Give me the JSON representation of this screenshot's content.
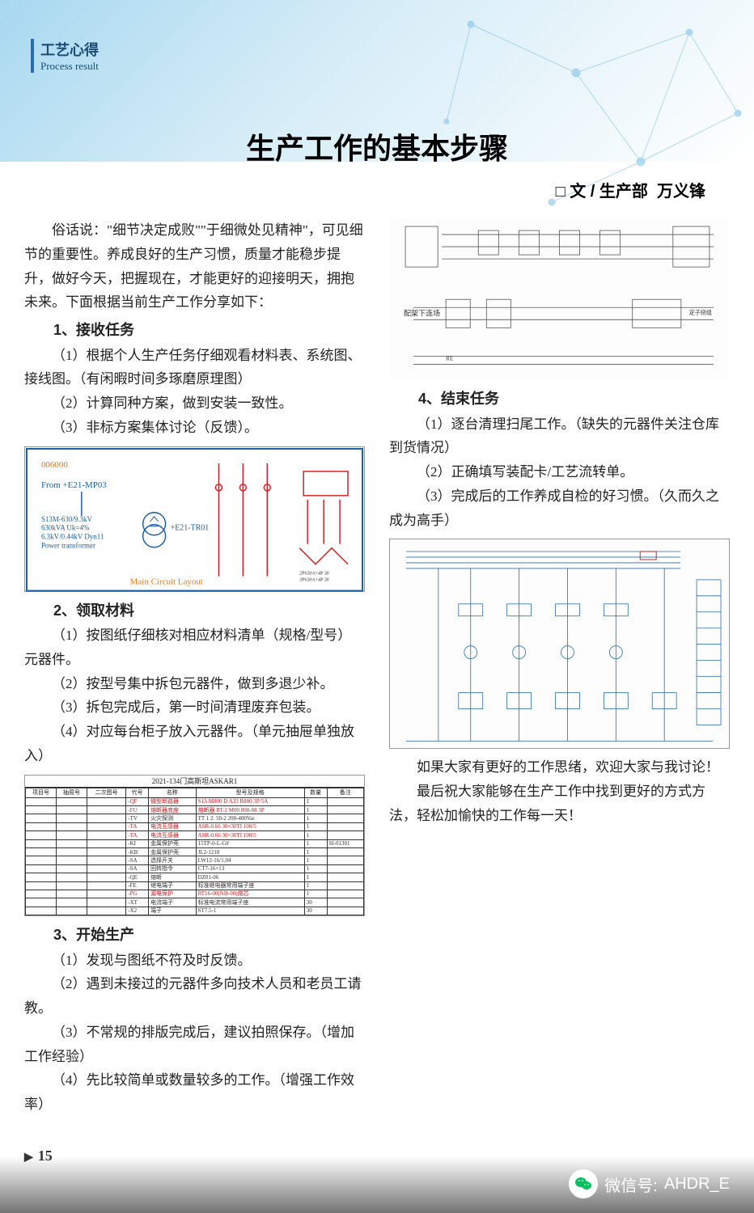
{
  "header": {
    "category_cn": "工艺心得",
    "category_en": "Process result"
  },
  "title": "生产工作的基本步骤",
  "byline_prefix": "□ 文 /",
  "byline_dept": "生产部",
  "byline_author": "万义锋",
  "intro": "俗话说：\"细节决定成败\"\"于细微处见精神\"，可见细节的重要性。养成良好的生产习惯，质量才能稳步提升，做好今天，把握现在，才能更好的迎接明天，拥抱未来。下面根据当前生产工作分享如下：",
  "sections": [
    {
      "heading": "1、接收任务",
      "items": [
        "（1）根据个人生产任务仔细观看材料表、系统图、接线图。（有闲暇时间多琢磨原理图）",
        "（2）计算同种方案，做到安装一致性。",
        "（3）非标方案集体讨论（反馈）。"
      ]
    },
    {
      "heading": "2、领取材料",
      "items": [
        "（1）按图纸仔细核对相应材料清单（规格/型号）元器件。",
        "（2）按型号集中拆包元器件，做到多退少补。",
        "（3）拆包完成后，第一时间清理废弃包装。",
        "（4）对应每台柜子放入元器件。（单元抽屉单独放入）"
      ]
    },
    {
      "heading": "3、开始生产",
      "items": [
        "（1）发现与图纸不符及时反馈。",
        "（2）遇到未接过的元器件多向技术人员和老员工请教。",
        "（3）不常规的排版完成后，建议拍照保存。（增加工作经验）",
        "（4）先比较简单或数量较多的工作。（增强工作效率）"
      ]
    },
    {
      "heading": "4、结束任务",
      "items": [
        "（1）逐台清理扫尾工作。（缺失的元器件关注仓库到货情况）",
        "（2）正确填写装配卡/工艺流转单。",
        "（3）完成后的工作养成自检的好习惯。（久而久之成为高手）"
      ]
    }
  ],
  "closing": [
    "如果大家有更好的工作思绪，欢迎大家与我讨论！",
    "最后祝大家能够在生产工作中找到更好的方式方法，轻松加愉快的工作每一天！"
  ],
  "diagram1": {
    "label_from": "From +E21-MP03",
    "label_tx1": "S13M-630/9.3kV",
    "label_tx2": "630kVA Uk=4%",
    "label_tx3": "6.3kV/0.44kV Dyn11",
    "label_tx4": "Power transformer",
    "label_tr": "+E21-TR01",
    "label_footer": "Main Circuit Layout",
    "colors": {
      "frame": "#1b5fa6",
      "line": "#d02626",
      "text": "#1b5fa6",
      "orange": "#e67817"
    }
  },
  "table": {
    "title": "2021-134门高斯坦ASKAR1",
    "headers": [
      "项目号",
      "抽屉号",
      "二次图号",
      "代号",
      "名称",
      "型号及规格",
      "数量",
      "备注"
    ],
    "header_en": [
      "PROJECT",
      "",
      "",
      "",
      "Name",
      "Type & specification",
      "",
      "Remarks"
    ],
    "rows": [
      [
        "",
        "",
        "",
        "-QF",
        "微型断路器",
        "S13-M800 D A33 R800 3P/5A",
        "1",
        ""
      ],
      [
        "",
        "",
        "",
        "-FU",
        "熔断器底座",
        "熔断器 RT-2 M00.098-08 3P",
        "1",
        ""
      ],
      [
        "",
        "",
        "",
        "-TV",
        "火灾探测",
        "TT 1 2. 50-2 200-400Vac",
        "1",
        ""
      ],
      [
        "",
        "",
        "",
        "-TA",
        "电流互感器",
        "ASR-0.66 30×30TI 100/5",
        "1",
        ""
      ],
      [
        "",
        "",
        "",
        "-TA",
        "电流互感器",
        "ASR-0.66 30×30TI 100/5",
        "1",
        ""
      ],
      [
        "",
        "",
        "",
        "-KI",
        "金属保护壳",
        "15TP-0-L-G#",
        "1",
        "SI-01301"
      ],
      [
        "",
        "",
        "",
        "-KB",
        "金属保护壳",
        "JL2-1218",
        "1",
        ""
      ],
      [
        "",
        "",
        "",
        "-SA",
        "选择开关",
        "LW12-16/1.04",
        "1",
        ""
      ],
      [
        "",
        "",
        "",
        "-SA",
        "回转指令",
        "CT7-16×13",
        "1",
        ""
      ],
      [
        "",
        "",
        "",
        "-QE",
        "熔断",
        "DZ01-06",
        "1",
        ""
      ],
      [
        "",
        "",
        "",
        "-FE",
        "继电端子",
        "标准继电器常用端子座",
        "1",
        ""
      ],
      [
        "",
        "",
        "",
        "-PG",
        "漏电保护",
        "RT16-00(NH-00)熔芯",
        "1",
        ""
      ],
      [
        "",
        "",
        "",
        "-XT",
        "电流端子",
        "标准电流常用端子座",
        "30",
        ""
      ],
      [
        "",
        "",
        "",
        "-X2",
        "端子",
        "ST7.5-1",
        "30",
        ""
      ]
    ],
    "colors": {
      "border": "#333",
      "red_text": "#c41e1e",
      "header_bg": "#ffffff"
    }
  },
  "diagram2": {
    "label": "配架下连场",
    "colors": {
      "line": "#333"
    }
  },
  "diagram3": {
    "colors": {
      "line": "#2a6da8",
      "accent": "#d02626"
    }
  },
  "page_number": "15",
  "footer": {
    "wechat_label": "微信号:",
    "wechat_id": "AHDR_E"
  },
  "style": {
    "bg_gradient_from": "#a8d8f0",
    "bg_gradient_to": "#ffffff",
    "title_color": "#000000",
    "body_color": "#222222",
    "accent": "#1a4d75"
  }
}
